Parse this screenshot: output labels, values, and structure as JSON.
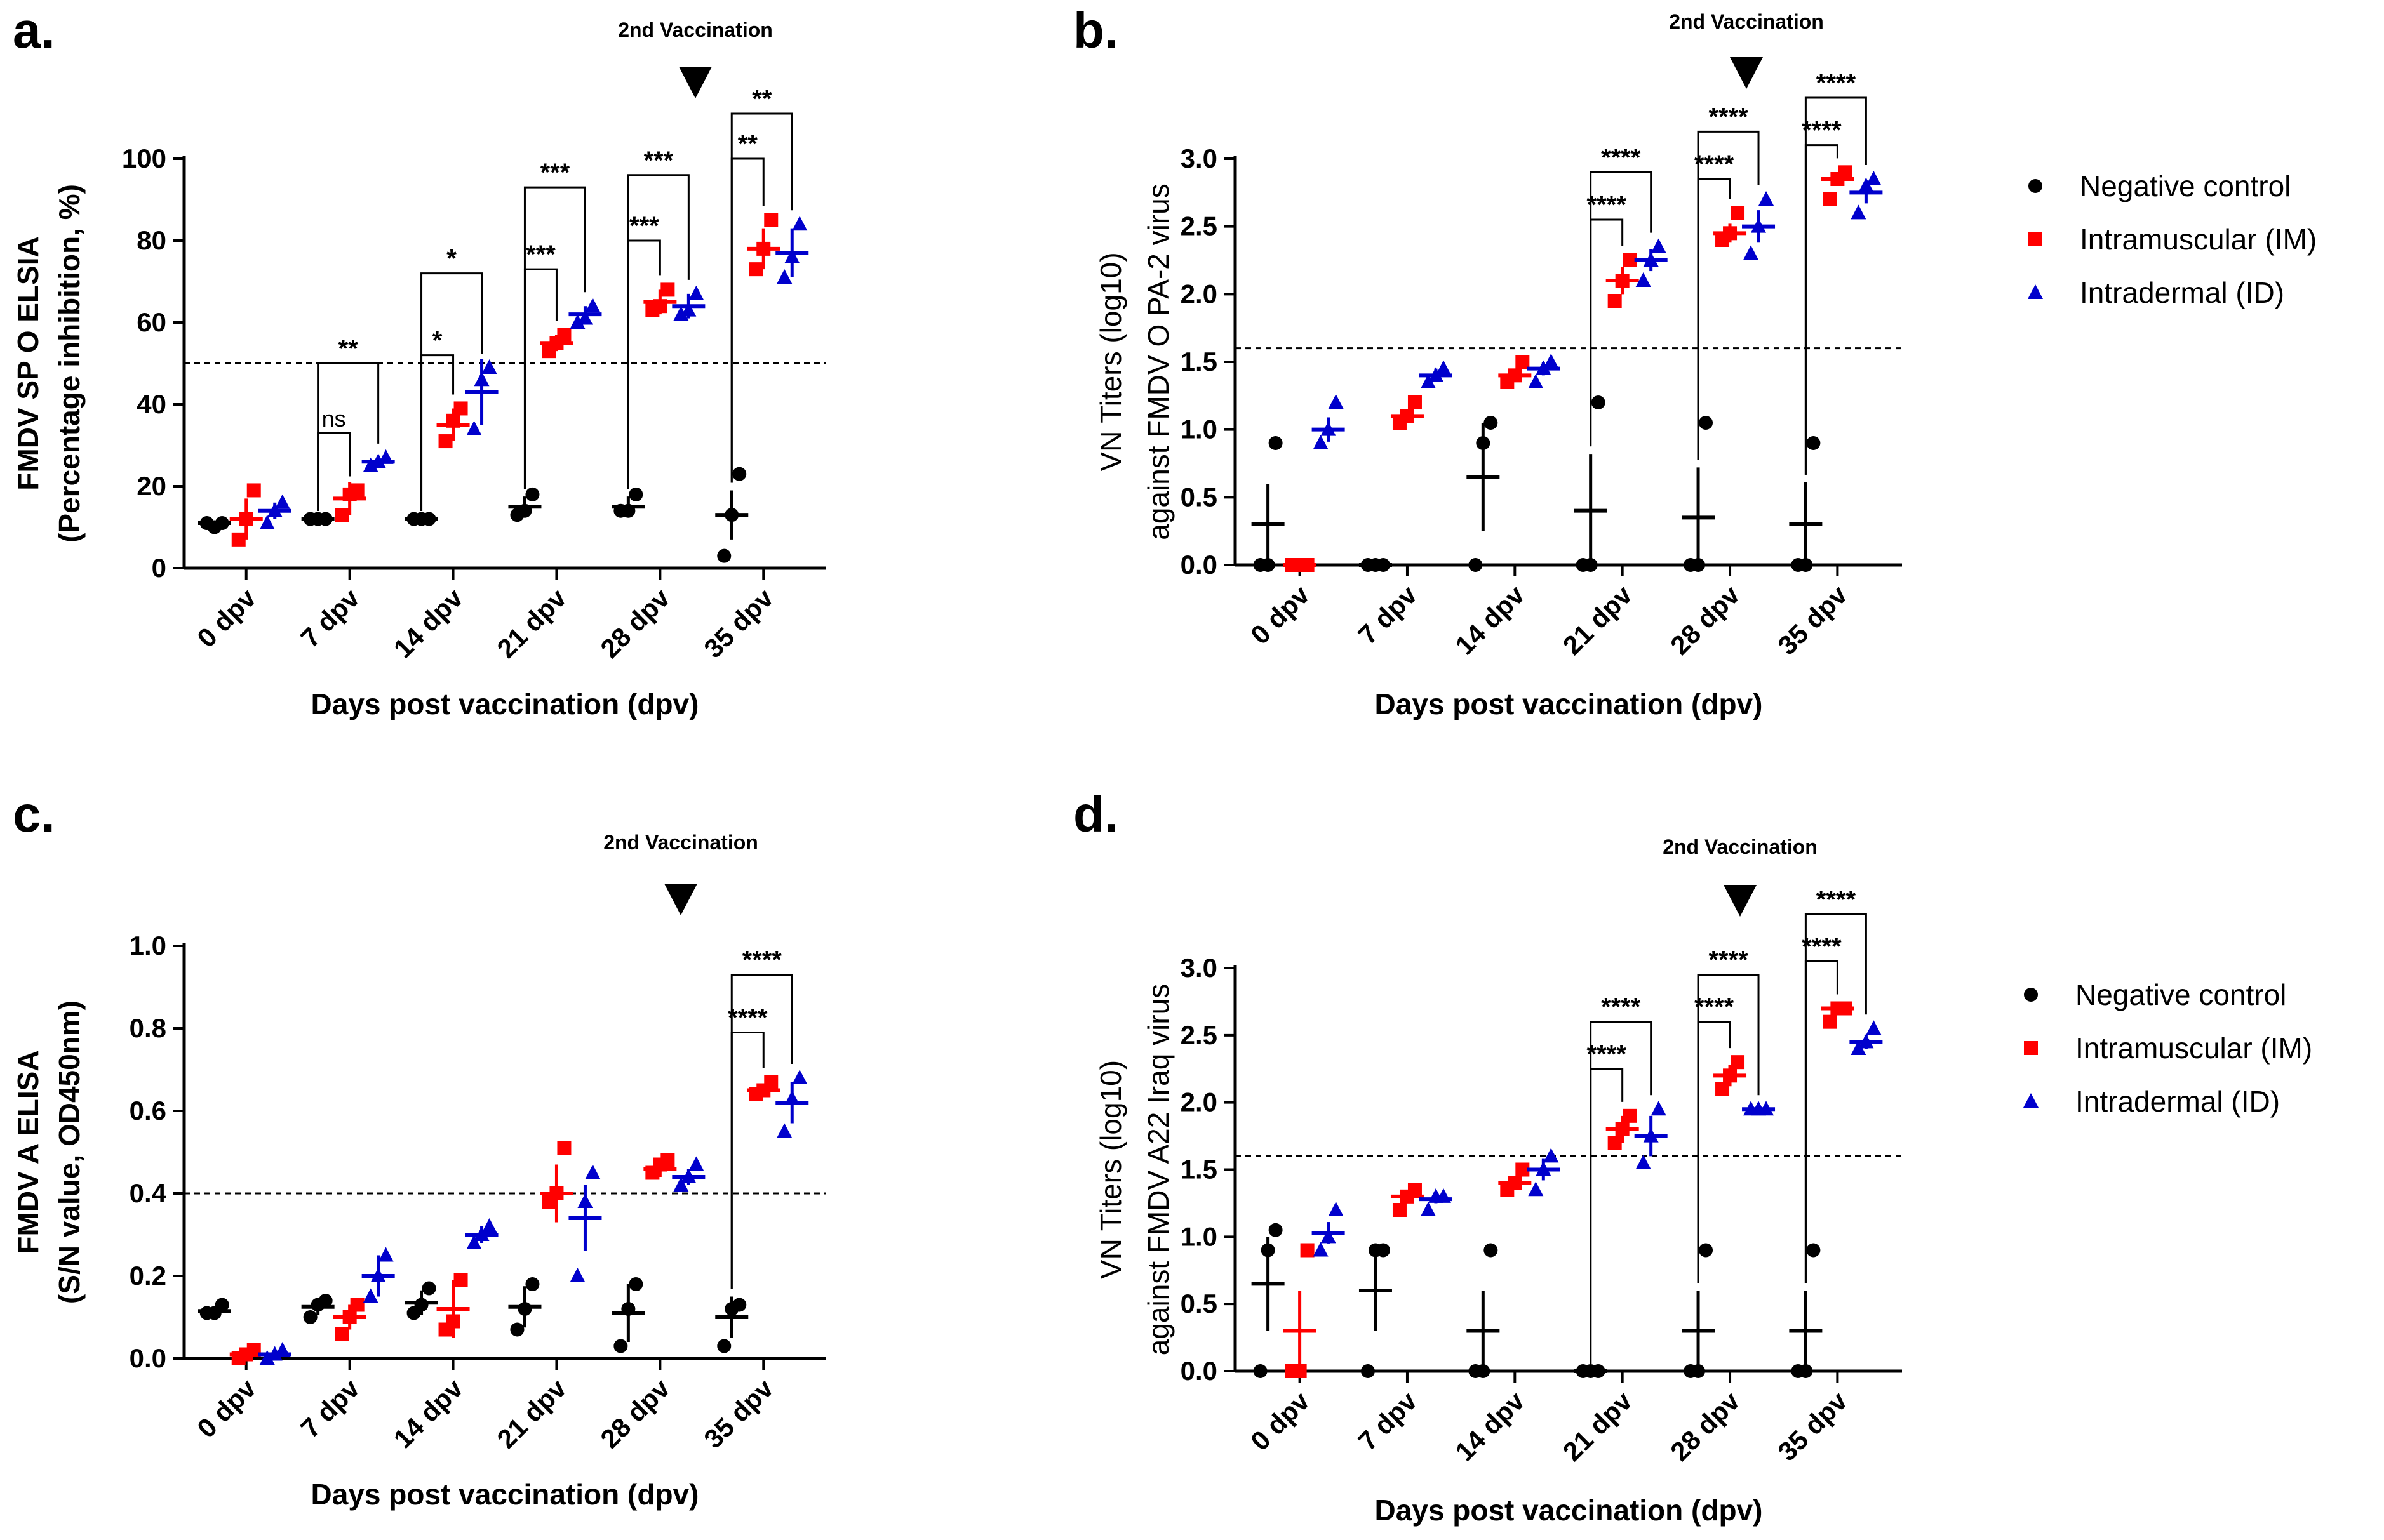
{
  "figure": {
    "colors": {
      "negative": "#000000",
      "im": "#ff0000",
      "id": "#0000cc"
    },
    "legend": [
      {
        "key": "negative",
        "label": "Negative control",
        "marker": "circle"
      },
      {
        "key": "im",
        "label": "Intramuscular (IM)",
        "marker": "square"
      },
      {
        "key": "id",
        "label": "Intradermal (ID)",
        "marker": "triangle"
      }
    ]
  },
  "chart_data": [
    {
      "panel": "a.",
      "type": "scatter",
      "title": "",
      "ylabel_line1": "FMDV SP O ELSIA",
      "ylabel_line2": "(Percentage inhibition, %)",
      "xlabel": "Days post vaccination (dpv)",
      "categories": [
        "0 dpv",
        "7 dpv",
        "14 dpv",
        "21 dpv",
        "28 dpv",
        "35 dpv"
      ],
      "ylim": [
        0,
        100
      ],
      "yticks": [
        0,
        20,
        40,
        60,
        80,
        100
      ],
      "ytick_labels": [
        "0",
        "20",
        "40",
        "60",
        "80",
        "100"
      ],
      "threshold": 50,
      "vaccination_label": "2nd Vaccination",
      "vaccination_category": 4,
      "series": [
        {
          "name": "Negative control",
          "key": "negative",
          "points": [
            [
              11,
              10,
              11
            ],
            [
              12,
              12,
              12
            ],
            [
              12,
              12,
              12
            ],
            [
              13,
              14,
              18
            ],
            [
              14,
              14,
              18
            ],
            [
              3,
              13,
              23
            ]
          ],
          "mean": [
            11,
            12,
            12,
            15,
            15,
            13
          ],
          "sd": [
            0.6,
            0.1,
            0.1,
            2.5,
            2.5,
            6
          ]
        },
        {
          "name": "Intramuscular (IM)",
          "key": "im",
          "points": [
            [
              7,
              12,
              19
            ],
            [
              13,
              18,
              19
            ],
            [
              31,
              36,
              39
            ],
            [
              53,
              55,
              57
            ],
            [
              63,
              64,
              68
            ],
            [
              73,
              78,
              85
            ]
          ],
          "mean": [
            12,
            17,
            35,
            55,
            65,
            78
          ],
          "sd": [
            5,
            4,
            4,
            2,
            3,
            5
          ]
        },
        {
          "name": "Intradermal (ID)",
          "key": "id",
          "points": [
            [
              11,
              14,
              16
            ],
            [
              25,
              26,
              27
            ],
            [
              34,
              46,
              49
            ],
            [
              60,
              61,
              64
            ],
            [
              62,
              63,
              67
            ],
            [
              71,
              76,
              84
            ]
          ],
          "mean": [
            14,
            26,
            43,
            62,
            64,
            77
          ],
          "sd": [
            2,
            1,
            8,
            2,
            3,
            6
          ]
        }
      ],
      "annotations": [
        {
          "label": "ns",
          "from": "negative",
          "to": "im",
          "category": 1,
          "level": 33
        },
        {
          "label": "**",
          "from": "negative",
          "to": "id",
          "category": 1,
          "level": 50
        },
        {
          "label": "*",
          "from": "negative",
          "to": "im",
          "category": 2,
          "level": 52
        },
        {
          "label": "*",
          "from": "negative",
          "to": "id",
          "category": 2,
          "level": 72
        },
        {
          "label": "***",
          "from": "negative",
          "to": "im",
          "category": 3,
          "level": 73
        },
        {
          "label": "***",
          "from": "negative",
          "to": "id",
          "category": 3,
          "level": 93
        },
        {
          "label": "***",
          "from": "negative",
          "to": "im",
          "category": 4,
          "level": 80
        },
        {
          "label": "***",
          "from": "negative",
          "to": "id",
          "category": 4,
          "level": 96
        },
        {
          "label": "**",
          "from": "negative",
          "to": "im",
          "category": 5,
          "level": 100
        },
        {
          "label": "**",
          "from": "negative",
          "to": "id",
          "category": 5,
          "level": 111
        }
      ]
    },
    {
      "panel": "b.",
      "type": "scatter",
      "title": "",
      "ylabel_line1": "VN Titers (log10)",
      "ylabel_line2": "against FMDV O PA-2 virus",
      "xlabel": "Days post vaccination (dpv)",
      "categories": [
        "0 dpv",
        "7 dpv",
        "14 dpv",
        "21 dpv",
        "28 dpv",
        "35 dpv"
      ],
      "ylim": [
        0,
        3.0
      ],
      "yticks": [
        0,
        0.5,
        1.0,
        1.5,
        2.0,
        2.5,
        3.0
      ],
      "ytick_labels": [
        "0.0",
        "0.5",
        "1.0",
        "1.5",
        "2.0",
        "2.5",
        "3.0"
      ],
      "threshold": 1.6,
      "vaccination_label": "2nd Vaccination",
      "vaccination_category": 4,
      "series": [
        {
          "name": "Negative control",
          "key": "negative",
          "points": [
            [
              0,
              0,
              0.9
            ],
            [
              0,
              0,
              0
            ],
            [
              0,
              0.9,
              1.05
            ],
            [
              0,
              0,
              1.2
            ],
            [
              0,
              0,
              1.05
            ],
            [
              0,
              0,
              0.9
            ]
          ],
          "mean": [
            0.3,
            0,
            0.65,
            0.4,
            0.35,
            0.3
          ],
          "sd": [
            0.3,
            0,
            0.4,
            0.42,
            0.37,
            0.31
          ]
        },
        {
          "name": "Intramuscular (IM)",
          "key": "im",
          "points": [
            [
              0,
              0,
              0
            ],
            [
              1.05,
              1.1,
              1.2
            ],
            [
              1.35,
              1.4,
              1.5
            ],
            [
              1.95,
              2.1,
              2.25
            ],
            [
              2.4,
              2.45,
              2.6
            ],
            [
              2.7,
              2.85,
              2.9
            ]
          ],
          "mean": [
            0,
            1.1,
            1.4,
            2.1,
            2.45,
            2.85
          ],
          "sd": [
            0,
            0.05,
            0.05,
            0.1,
            0.07,
            0.05
          ]
        },
        {
          "name": "Intradermal (ID)",
          "key": "id",
          "points": [
            [
              0.9,
              1.0,
              1.2
            ],
            [
              1.35,
              1.4,
              1.45
            ],
            [
              1.35,
              1.45,
              1.5
            ],
            [
              2.1,
              2.25,
              2.35
            ],
            [
              2.3,
              2.5,
              2.7
            ],
            [
              2.6,
              2.8,
              2.85
            ]
          ],
          "mean": [
            1.0,
            1.4,
            1.45,
            2.25,
            2.5,
            2.75
          ],
          "sd": [
            0.09,
            0.05,
            0.05,
            0.08,
            0.12,
            0.08
          ]
        }
      ],
      "annotations": [
        {
          "label": "****",
          "from": "negative",
          "to": "im",
          "category": 3,
          "level": 2.55
        },
        {
          "label": "****",
          "from": "negative",
          "to": "id",
          "category": 3,
          "level": 2.9
        },
        {
          "label": "****",
          "from": "negative",
          "to": "im",
          "category": 4,
          "level": 2.85
        },
        {
          "label": "****",
          "from": "negative",
          "to": "id",
          "category": 4,
          "level": 3.2
        },
        {
          "label": "****",
          "from": "negative",
          "to": "im",
          "category": 5,
          "level": 3.1
        },
        {
          "label": "****",
          "from": "negative",
          "to": "id",
          "category": 5,
          "level": 3.45
        }
      ]
    },
    {
      "panel": "c.",
      "type": "scatter",
      "title": "",
      "ylabel_line1": "FMDV A ELISA",
      "ylabel_line2": "(S/N value, OD450nm)",
      "xlabel": "Days post vaccination (dpv)",
      "categories": [
        "0 dpv",
        "7 dpv",
        "14 dpv",
        "21 dpv",
        "28 dpv",
        "35 dpv"
      ],
      "ylim": [
        0,
        1.0
      ],
      "yticks": [
        0,
        0.2,
        0.4,
        0.6,
        0.8,
        1.0
      ],
      "ytick_labels": [
        "0.0",
        "0.2",
        "0.4",
        "0.6",
        "0.8",
        "1.0"
      ],
      "threshold": 0.4,
      "vaccination_label": "2nd Vaccination",
      "vaccination_category": 4,
      "series": [
        {
          "name": "Negative control",
          "key": "negative",
          "points": [
            [
              0.11,
              0.11,
              0.13
            ],
            [
              0.1,
              0.13,
              0.14
            ],
            [
              0.11,
              0.13,
              0.17
            ],
            [
              0.07,
              0.12,
              0.18
            ],
            [
              0.03,
              0.12,
              0.18
            ],
            [
              0.03,
              0.12,
              0.13
            ]
          ],
          "mean": [
            0.115,
            0.125,
            0.135,
            0.125,
            0.11,
            0.1
          ],
          "sd": [
            0.01,
            0.02,
            0.03,
            0.05,
            0.07,
            0.05
          ]
        },
        {
          "name": "Intramuscular (IM)",
          "key": "im",
          "points": [
            [
              0,
              0.01,
              0.02
            ],
            [
              0.06,
              0.1,
              0.13
            ],
            [
              0.07,
              0.09,
              0.19
            ],
            [
              0.38,
              0.4,
              0.51
            ],
            [
              0.45,
              0.47,
              0.48
            ],
            [
              0.64,
              0.65,
              0.67
            ]
          ],
          "mean": [
            0.01,
            0.1,
            0.12,
            0.4,
            0.46,
            0.65
          ],
          "sd": [
            0.01,
            0.03,
            0.07,
            0.07,
            0.02,
            0.01
          ]
        },
        {
          "name": "Intradermal (ID)",
          "key": "id",
          "points": [
            [
              0,
              0.01,
              0.02
            ],
            [
              0.15,
              0.2,
              0.25
            ],
            [
              0.28,
              0.3,
              0.32
            ],
            [
              0.2,
              0.38,
              0.45
            ],
            [
              0.42,
              0.44,
              0.47
            ],
            [
              0.55,
              0.63,
              0.68
            ]
          ],
          "mean": [
            0.01,
            0.2,
            0.3,
            0.34,
            0.44,
            0.62
          ],
          "sd": [
            0.01,
            0.05,
            0.02,
            0.08,
            0.02,
            0.05
          ]
        }
      ],
      "annotations": [
        {
          "label": "****",
          "from": "negative",
          "to": "im",
          "category": 5,
          "level": 0.79
        },
        {
          "label": "****",
          "from": "negative",
          "to": "id",
          "category": 5,
          "level": 0.93
        }
      ]
    },
    {
      "panel": "d.",
      "type": "scatter",
      "title": "",
      "ylabel_line1": "VN Titers (log10)",
      "ylabel_line2": "against FMDV A22 Iraq virus",
      "xlabel": "Days post vaccination (dpv)",
      "categories": [
        "0 dpv",
        "7 dpv",
        "14 dpv",
        "21 dpv",
        "28 dpv",
        "35 dpv"
      ],
      "ylim": [
        0,
        3.0
      ],
      "yticks": [
        0,
        0.5,
        1.0,
        1.5,
        2.0,
        2.5,
        3.0
      ],
      "ytick_labels": [
        "0.0",
        "0.5",
        "1.0",
        "1.5",
        "2.0",
        "2.5",
        "3.0"
      ],
      "threshold": 1.6,
      "vaccination_label": "2nd Vaccination",
      "vaccination_category": 4,
      "series": [
        {
          "name": "Negative control",
          "key": "negative",
          "points": [
            [
              0,
              0.9,
              1.05
            ],
            [
              0,
              0.9,
              0.9
            ],
            [
              0,
              0,
              0.9
            ],
            [
              0,
              0,
              0
            ],
            [
              0,
              0,
              0.9
            ],
            [
              0,
              0,
              0.9
            ]
          ],
          "mean": [
            0.65,
            0.6,
            0.3,
            0,
            0.3,
            0.3
          ],
          "sd": [
            0.35,
            0.3,
            0.3,
            0,
            0.3,
            0.3
          ]
        },
        {
          "name": "Intramuscular (IM)",
          "key": "im",
          "points": [
            [
              0,
              0,
              0.9
            ],
            [
              1.2,
              1.3,
              1.35
            ],
            [
              1.35,
              1.4,
              1.5
            ],
            [
              1.7,
              1.8,
              1.9
            ],
            [
              2.1,
              2.2,
              2.3
            ],
            [
              2.6,
              2.7,
              2.7
            ]
          ],
          "mean": [
            0.3,
            1.3,
            1.4,
            1.8,
            2.2,
            2.7
          ],
          "sd": [
            0.3,
            0.05,
            0.05,
            0.1,
            0.08,
            0.04
          ]
        },
        {
          "name": "Intradermal (ID)",
          "key": "id",
          "points": [
            [
              0.9,
              1.0,
              1.2
            ],
            [
              1.2,
              1.3,
              1.3
            ],
            [
              1.35,
              1.5,
              1.6
            ],
            [
              1.55,
              1.75,
              1.95
            ],
            [
              1.95,
              1.95,
              1.95
            ],
            [
              2.4,
              2.45,
              2.55
            ]
          ],
          "mean": [
            1.03,
            1.28,
            1.5,
            1.75,
            1.95,
            2.45
          ],
          "sd": [
            0.08,
            0.03,
            0.08,
            0.15,
            0.01,
            0.05
          ]
        }
      ],
      "annotations": [
        {
          "label": "****",
          "from": "negative",
          "to": "im",
          "category": 3,
          "level": 2.25
        },
        {
          "label": "****",
          "from": "negative",
          "to": "id",
          "category": 3,
          "level": 2.6
        },
        {
          "label": "****",
          "from": "negative",
          "to": "im",
          "category": 4,
          "level": 2.6
        },
        {
          "label": "****",
          "from": "negative",
          "to": "id",
          "category": 4,
          "level": 2.95
        },
        {
          "label": "****",
          "from": "negative",
          "to": "im",
          "category": 5,
          "level": 3.05
        },
        {
          "label": "****",
          "from": "negative",
          "to": "id",
          "category": 5,
          "level": 3.4
        }
      ]
    }
  ]
}
